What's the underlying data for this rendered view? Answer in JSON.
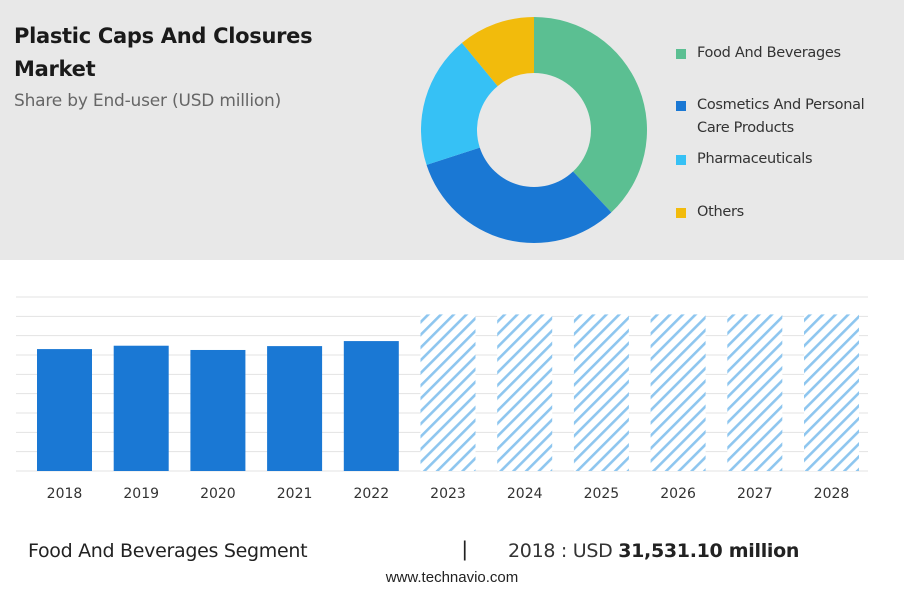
{
  "header": {
    "title": "Plastic Caps And Closures Market",
    "subtitle": "Share by End-user (USD million)"
  },
  "chart_data": [
    {
      "type": "pie",
      "variant": "donut",
      "title": "Share by End-user (USD million)",
      "legend_position": "right",
      "slices": [
        {
          "label": "Food And Beverages",
          "value": 38,
          "color": "#5bbf92"
        },
        {
          "label": "Cosmetics And Personal Care Products",
          "value": 32,
          "color": "#1a78d4"
        },
        {
          "label": "Pharmaceuticals",
          "value": 19,
          "color": "#36c1f5"
        },
        {
          "label": "Others",
          "value": 11,
          "color": "#f2bb0c"
        }
      ]
    },
    {
      "type": "bar",
      "segment": "Food And Beverages Segment",
      "categories": [
        "2018",
        "2019",
        "2020",
        "2021",
        "2022",
        "2023",
        "2024",
        "2025",
        "2026",
        "2027",
        "2028"
      ],
      "values": [
        31531.1,
        32400,
        31300,
        32300,
        33600,
        null,
        null,
        null,
        null,
        null,
        null
      ],
      "forecast_categories": [
        "2023",
        "2024",
        "2025",
        "2026",
        "2027",
        "2028"
      ],
      "ylim": [
        0,
        45000
      ],
      "grid": true,
      "actual_color": "#1a78d4",
      "forecast_color": "#8ec6ef"
    }
  ],
  "footer": {
    "segment_label": "Food And Beverages Segment",
    "divider": "|",
    "year_prefix": "2018 : USD",
    "value_text": "31,531.10 million",
    "website": "www.technavio.com"
  }
}
